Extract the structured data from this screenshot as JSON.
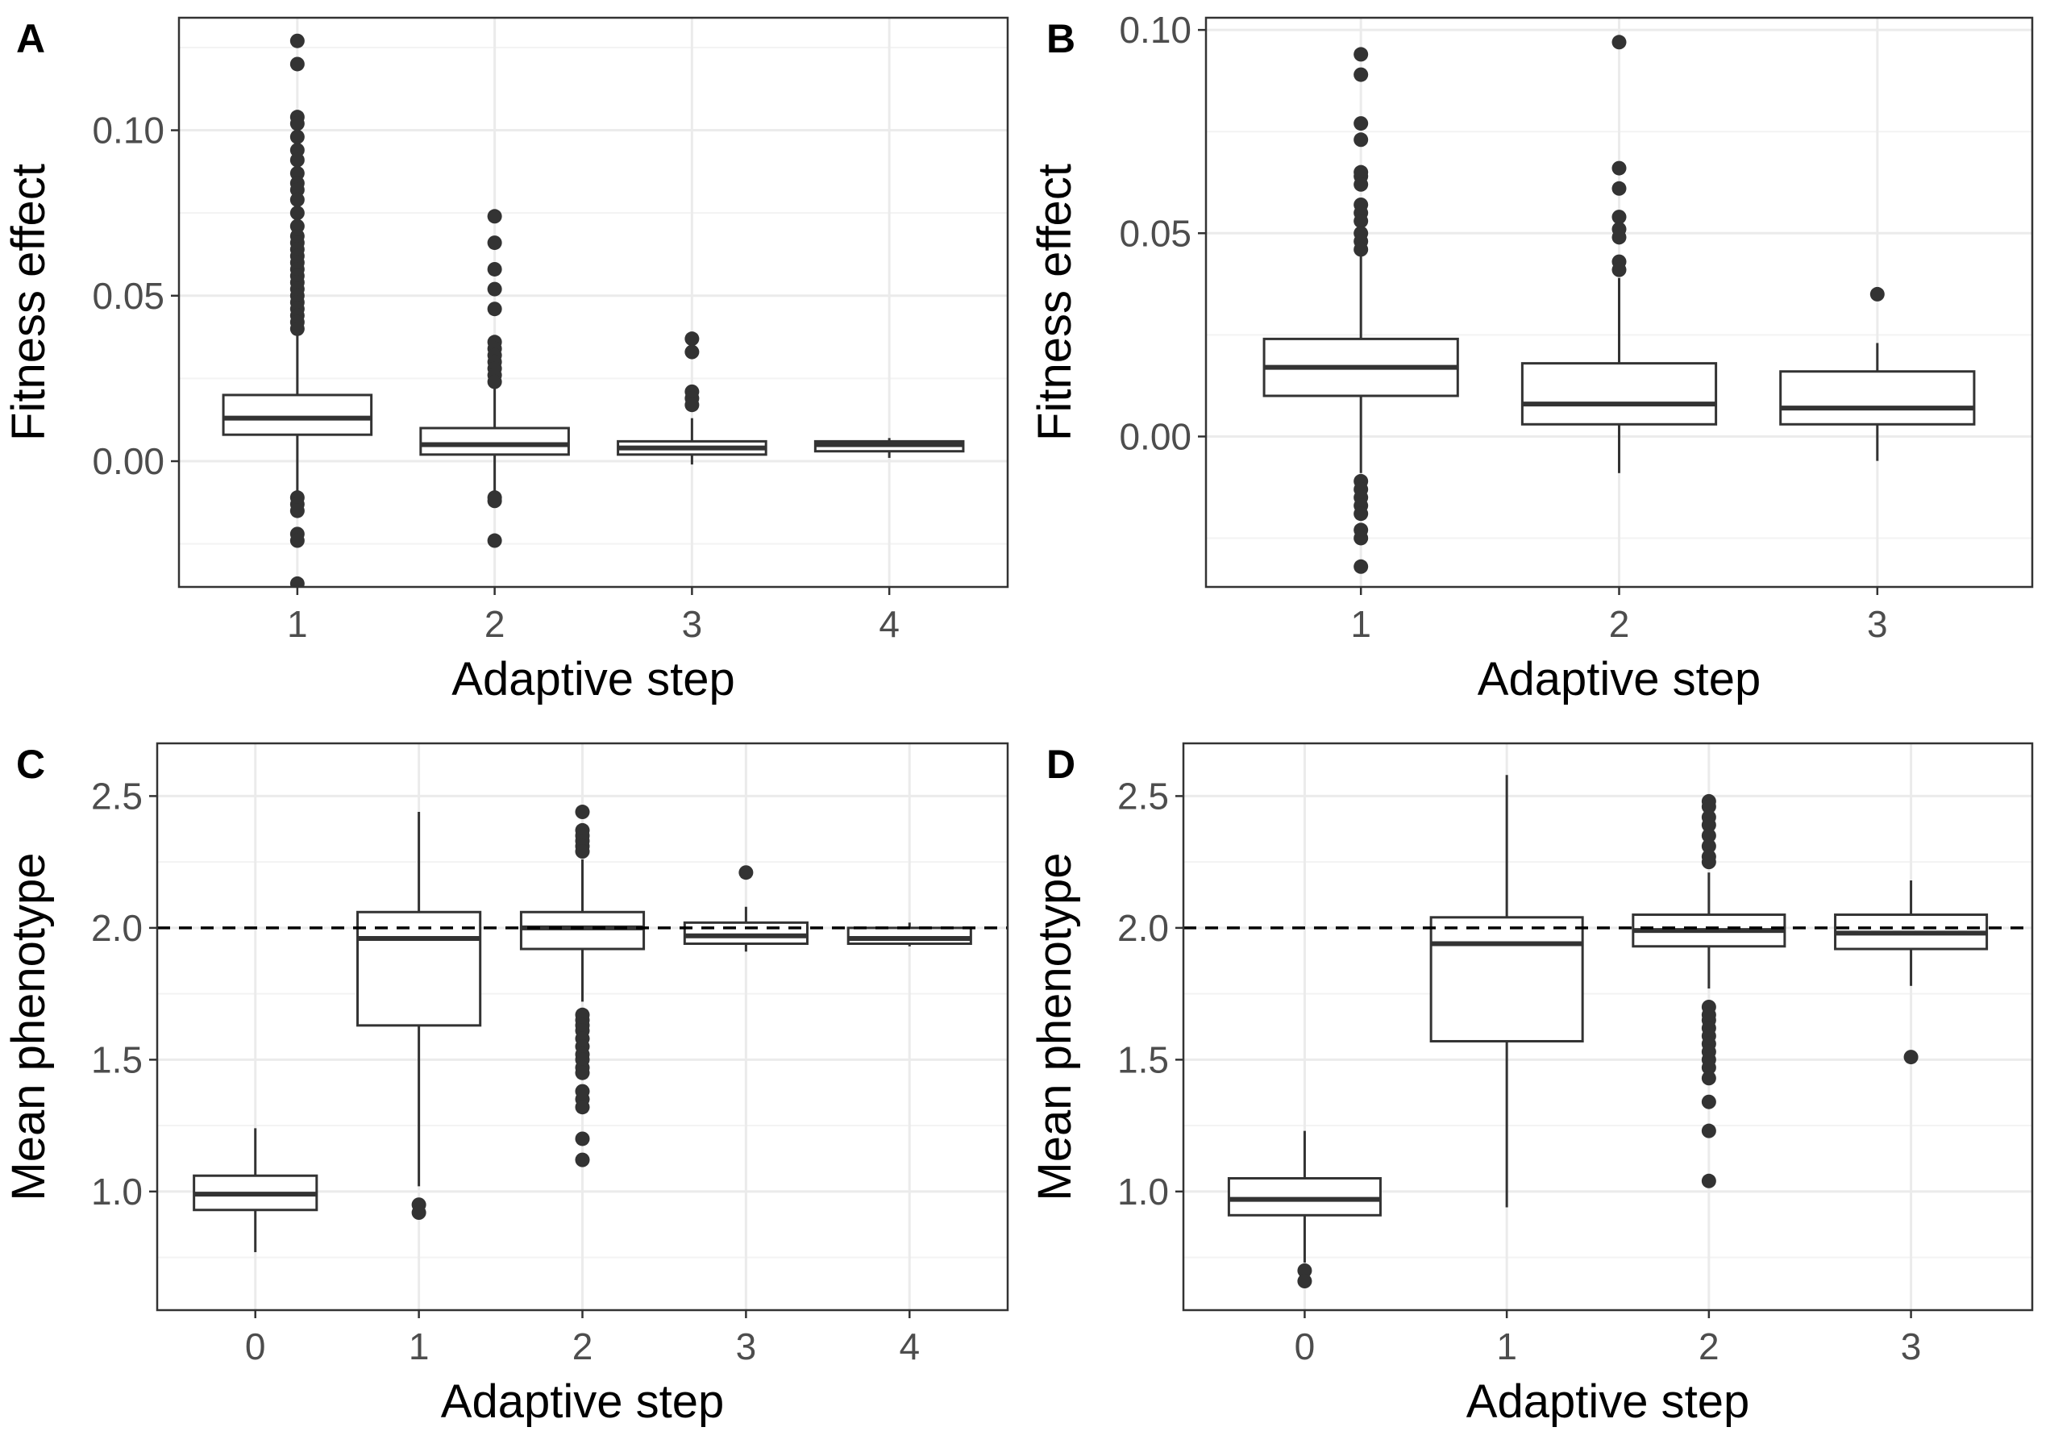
{
  "colors": {
    "box_stroke": "#333333",
    "outlier": "#333333",
    "grid_major": "#ebebeb",
    "grid_minor": "#f3f3f3",
    "panel_border": "#333333",
    "reference_line": "#000000"
  },
  "chart_data": [
    {
      "panel": "A",
      "type": "boxplot",
      "xlabel": "Adaptive step",
      "ylabel": "Fitness effect",
      "ylim": [
        -0.038,
        0.134
      ],
      "yticks": [
        0.0,
        0.05,
        0.1
      ],
      "ytick_labels": [
        "0.00",
        "0.05",
        "0.10"
      ],
      "grid": true,
      "categories": [
        "1",
        "2",
        "3",
        "4"
      ],
      "boxes": [
        {
          "category": "1",
          "whisker_low": -0.009,
          "q1": 0.008,
          "median": 0.013,
          "q3": 0.02,
          "whisker_high": 0.039,
          "outliers": [
            0.127,
            0.12,
            0.104,
            0.102,
            0.098,
            0.094,
            0.091,
            0.087,
            0.084,
            0.082,
            0.079,
            0.075,
            0.071,
            0.068,
            0.066,
            0.064,
            0.062,
            0.06,
            0.058,
            0.056,
            0.054,
            0.052,
            0.05,
            0.048,
            0.046,
            0.044,
            0.042,
            0.04,
            -0.011,
            -0.013,
            -0.015,
            -0.022,
            -0.024,
            -0.037
          ]
        },
        {
          "category": "2",
          "whisker_low": -0.01,
          "q1": 0.002,
          "median": 0.005,
          "q3": 0.01,
          "whisker_high": 0.022,
          "outliers": [
            0.074,
            0.066,
            0.058,
            0.052,
            0.046,
            0.036,
            0.034,
            0.032,
            0.03,
            0.028,
            0.026,
            0.024,
            -0.011,
            -0.012,
            -0.024
          ]
        },
        {
          "category": "3",
          "whisker_low": -0.001,
          "q1": 0.002,
          "median": 0.004,
          "q3": 0.006,
          "whisker_high": 0.013,
          "outliers": [
            0.037,
            0.033,
            0.021,
            0.019,
            0.017
          ]
        },
        {
          "category": "4",
          "whisker_low": 0.001,
          "q1": 0.003,
          "median": 0.005,
          "q3": 0.006,
          "whisker_high": 0.007,
          "outliers": []
        }
      ]
    },
    {
      "panel": "B",
      "type": "boxplot",
      "xlabel": "Adaptive step",
      "ylabel": "Fitness effect",
      "ylim": [
        -0.037,
        0.103
      ],
      "yticks": [
        0.0,
        0.05,
        0.1
      ],
      "ytick_labels": [
        "0.00",
        "0.05",
        "0.10"
      ],
      "grid": true,
      "categories": [
        "1",
        "2",
        "3"
      ],
      "boxes": [
        {
          "category": "1",
          "whisker_low": -0.009,
          "q1": 0.01,
          "median": 0.017,
          "q3": 0.024,
          "whisker_high": 0.045,
          "outliers": [
            0.094,
            0.089,
            0.077,
            0.073,
            0.065,
            0.064,
            0.062,
            0.057,
            0.055,
            0.053,
            0.05,
            0.048,
            0.046,
            -0.011,
            -0.013,
            -0.015,
            -0.017,
            -0.019,
            -0.023,
            -0.025,
            -0.032
          ]
        },
        {
          "category": "2",
          "whisker_low": -0.009,
          "q1": 0.003,
          "median": 0.008,
          "q3": 0.018,
          "whisker_high": 0.039,
          "outliers": [
            0.097,
            0.066,
            0.061,
            0.054,
            0.051,
            0.049,
            0.043,
            0.041
          ]
        },
        {
          "category": "3",
          "whisker_low": -0.006,
          "q1": 0.003,
          "median": 0.007,
          "q3": 0.016,
          "whisker_high": 0.023,
          "outliers": [
            0.035
          ]
        }
      ]
    },
    {
      "panel": "C",
      "type": "boxplot",
      "xlabel": "Adaptive step",
      "ylabel": "Mean phenotype",
      "ylim": [
        0.55,
        2.7
      ],
      "yticks": [
        1.0,
        1.5,
        2.0,
        2.5
      ],
      "ytick_labels": [
        "1.0",
        "1.5",
        "2.0",
        "2.5"
      ],
      "reference_line": 2.0,
      "grid": true,
      "categories": [
        "0",
        "1",
        "2",
        "3",
        "4"
      ],
      "boxes": [
        {
          "category": "0",
          "whisker_low": 0.77,
          "q1": 0.93,
          "median": 0.99,
          "q3": 1.06,
          "whisker_high": 1.24,
          "outliers": []
        },
        {
          "category": "1",
          "whisker_low": 1.02,
          "q1": 1.63,
          "median": 1.96,
          "q3": 2.06,
          "whisker_high": 2.44,
          "outliers": [
            0.95,
            0.92
          ]
        },
        {
          "category": "2",
          "whisker_low": 1.72,
          "q1": 1.92,
          "median": 2.0,
          "q3": 2.06,
          "whisker_high": 2.26,
          "outliers": [
            2.44,
            2.37,
            2.35,
            2.33,
            2.31,
            2.29,
            1.67,
            1.65,
            1.63,
            1.61,
            1.58,
            1.55,
            1.52,
            1.5,
            1.47,
            1.45,
            1.38,
            1.35,
            1.32,
            1.2,
            1.12
          ]
        },
        {
          "category": "3",
          "whisker_low": 1.91,
          "q1": 1.94,
          "median": 1.97,
          "q3": 2.02,
          "whisker_high": 2.08,
          "outliers": [
            2.21
          ]
        },
        {
          "category": "4",
          "whisker_low": 1.93,
          "q1": 1.94,
          "median": 1.96,
          "q3": 2.0,
          "whisker_high": 2.02,
          "outliers": []
        }
      ]
    },
    {
      "panel": "D",
      "type": "boxplot",
      "xlabel": "Adaptive step",
      "ylabel": "Mean phenotype",
      "ylim": [
        0.55,
        2.7
      ],
      "yticks": [
        1.0,
        1.5,
        2.0,
        2.5
      ],
      "ytick_labels": [
        "1.0",
        "1.5",
        "2.0",
        "2.5"
      ],
      "reference_line": 2.0,
      "grid": true,
      "categories": [
        "0",
        "1",
        "2",
        "3"
      ],
      "boxes": [
        {
          "category": "0",
          "whisker_low": 0.73,
          "q1": 0.91,
          "median": 0.97,
          "q3": 1.05,
          "whisker_high": 1.23,
          "outliers": [
            0.7,
            0.66
          ]
        },
        {
          "category": "1",
          "whisker_low": 0.94,
          "q1": 1.57,
          "median": 1.94,
          "q3": 2.04,
          "whisker_high": 2.58,
          "outliers": []
        },
        {
          "category": "2",
          "whisker_low": 1.77,
          "q1": 1.93,
          "median": 1.99,
          "q3": 2.05,
          "whisker_high": 2.21,
          "outliers": [
            2.48,
            2.46,
            2.42,
            2.39,
            2.35,
            2.31,
            2.27,
            2.25,
            1.7,
            1.67,
            1.65,
            1.62,
            1.59,
            1.56,
            1.53,
            1.5,
            1.47,
            1.43,
            1.34,
            1.23,
            1.04
          ]
        },
        {
          "category": "3",
          "whisker_low": 1.78,
          "q1": 1.92,
          "median": 1.98,
          "q3": 2.05,
          "whisker_high": 2.18,
          "outliers": [
            1.51
          ]
        }
      ]
    }
  ]
}
